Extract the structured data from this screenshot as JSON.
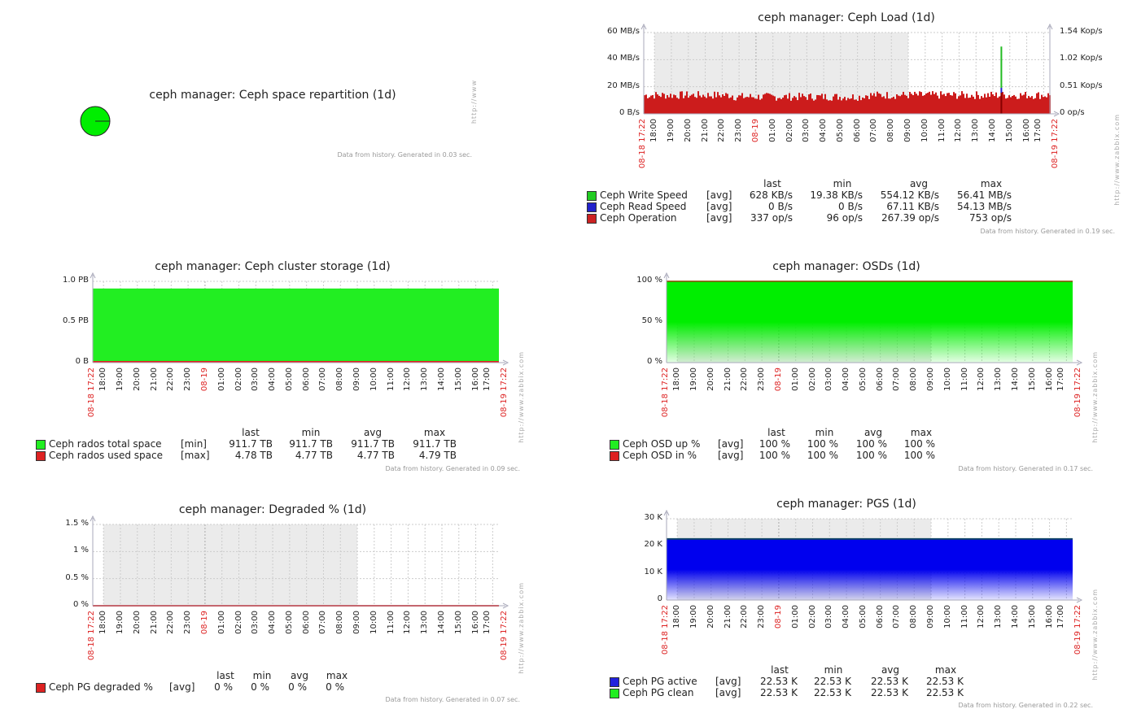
{
  "time_axis": {
    "start": "08-18 17:22",
    "end": "08-19 17:22",
    "ticks": [
      "18:00",
      "19:00",
      "20:00",
      "21:00",
      "22:00",
      "23:00",
      "08-19",
      "01:00",
      "02:00",
      "03:00",
      "04:00",
      "05:00",
      "06:00",
      "07:00",
      "08:00",
      "09:00",
      "10:00",
      "11:00",
      "12:00",
      "13:00",
      "14:00",
      "15:00",
      "16:00",
      "17:00"
    ]
  },
  "watermark": "http://www.zabbix.com",
  "watermark_short": "http://www",
  "chart_data": [
    {
      "type": "pie",
      "title": "ceph manager: Ceph space repartition (1d)",
      "slices": [
        {
          "name": "",
          "value": 100,
          "color": "#00ee00"
        }
      ],
      "footer": "Data from history. Generated in 0.03 sec."
    },
    {
      "type": "area",
      "title": "ceph manager: Ceph Load (1d)",
      "y_left": {
        "ylim": [
          0,
          60
        ],
        "unit": "MB/s",
        "tick_labels": [
          "60 MB/s",
          "40 MB/s",
          "20 MB/s",
          "0 B/s"
        ]
      },
      "y_right": {
        "ylim": [
          0,
          1.54
        ],
        "unit": "Kop/s",
        "tick_labels": [
          "1.54 Kop/s",
          "1.02 Kop/s",
          "0.51 Kop/s",
          "0 op/s"
        ]
      },
      "shaded": [
        "18:00",
        "09:00"
      ],
      "legend": {
        "headers": [
          "last",
          "min",
          "avg",
          "max"
        ],
        "rows": [
          {
            "name": "Ceph Write Speed",
            "color": "#22cc22",
            "func": "[avg]",
            "last": "628 KB/s",
            "min": "19.38 KB/s",
            "avg": "554.12 KB/s",
            "max": "56.41 MB/s"
          },
          {
            "name": "Ceph Read Speed",
            "color": "#2222cc",
            "func": "[avg]",
            "last": "0 B/s",
            "min": "0 B/s",
            "avg": "67.11 KB/s",
            "max": "54.13 MB/s"
          },
          {
            "name": "Ceph Operation",
            "color": "#cc2222",
            "func": "[avg]",
            "last": "337 op/s",
            "min": "96 op/s",
            "avg": "267.39 op/s",
            "max": "753 op/s"
          }
        ]
      },
      "spike": {
        "time": "14:30",
        "write_MBps": 56.41,
        "read_MBps": 54.13
      },
      "footer": "Data from history. Generated in 0.19 sec."
    },
    {
      "type": "area",
      "title": "ceph manager: Ceph cluster storage (1d)",
      "y_left": {
        "ylim": [
          0,
          1.0
        ],
        "unit": "PB",
        "tick_labels": [
          "1.0 PB",
          "0.5 PB",
          "0 B"
        ]
      },
      "legend": {
        "headers": [
          "last",
          "min",
          "avg",
          "max"
        ],
        "rows": [
          {
            "name": "Ceph rados total space",
            "color": "#22ee22",
            "func": "[min]",
            "last": "911.7 TB",
            "min": "911.7 TB",
            "avg": "911.7 TB",
            "max": "911.7 TB"
          },
          {
            "name": "Ceph rados used space",
            "color": "#dd2222",
            "func": "[max]",
            "last": "4.78 TB",
            "min": "4.77 TB",
            "avg": "4.77 TB",
            "max": "4.79 TB"
          }
        ]
      },
      "values_PB": [
        0.9117,
        0.00478
      ],
      "footer": "Data from history. Generated in 0.09 sec."
    },
    {
      "type": "area",
      "title": "ceph manager: OSDs (1d)",
      "y_left": {
        "ylim": [
          0,
          100
        ],
        "unit": "%",
        "tick_labels": [
          "100 %",
          "50 %",
          "0 %"
        ]
      },
      "shaded": [
        "18:00",
        "09:00"
      ],
      "legend": {
        "headers": [
          "last",
          "min",
          "avg",
          "max"
        ],
        "rows": [
          {
            "name": "Ceph OSD up %",
            "color": "#22ee22",
            "func": "[avg]",
            "last": "100 %",
            "min": "100 %",
            "avg": "100 %",
            "max": "100 %"
          },
          {
            "name": "Ceph OSD in %",
            "color": "#dd2222",
            "func": "[avg]",
            "last": "100 %",
            "min": "100 %",
            "avg": "100 %",
            "max": "100 %"
          }
        ]
      },
      "values": [
        100,
        100
      ],
      "footer": "Data from history. Generated in 0.17 sec."
    },
    {
      "type": "line",
      "title": "ceph manager: Degraded % (1d)",
      "y_left": {
        "ylim": [
          0,
          1.5
        ],
        "unit": "%",
        "tick_labels": [
          "1.5 %",
          "1 %",
          "0.5 %",
          "0 %"
        ]
      },
      "shaded": [
        "18:00",
        "09:00"
      ],
      "legend": {
        "headers": [
          "last",
          "min",
          "avg",
          "max"
        ],
        "rows": [
          {
            "name": "Ceph PG degraded %",
            "color": "#dd2222",
            "func": "[avg]",
            "last": "0 %",
            "min": "0 %",
            "avg": "0 %",
            "max": "0 %"
          }
        ]
      },
      "values": [
        0
      ],
      "footer": "Data from history. Generated in 0.07 sec."
    },
    {
      "type": "area",
      "title": "ceph manager: PGS (1d)",
      "y_left": {
        "ylim": [
          0,
          30
        ],
        "unit": "K",
        "tick_labels": [
          "30 K",
          "20 K",
          "10 K",
          "0"
        ]
      },
      "shaded": [
        "18:00",
        "09:00"
      ],
      "legend": {
        "headers": [
          "last",
          "min",
          "avg",
          "max"
        ],
        "rows": [
          {
            "name": "Ceph PG active",
            "color": "#2222dd",
            "func": "[avg]",
            "last": "22.53 K",
            "min": "22.53 K",
            "avg": "22.53 K",
            "max": "22.53 K"
          },
          {
            "name": "Ceph PG clean",
            "color": "#22ee22",
            "func": "[avg]",
            "last": "22.53 K",
            "min": "22.53 K",
            "avg": "22.53 K",
            "max": "22.53 K"
          }
        ]
      },
      "values_K": [
        22.53,
        22.53
      ],
      "footer": "Data from history. Generated in 0.22 sec."
    }
  ]
}
